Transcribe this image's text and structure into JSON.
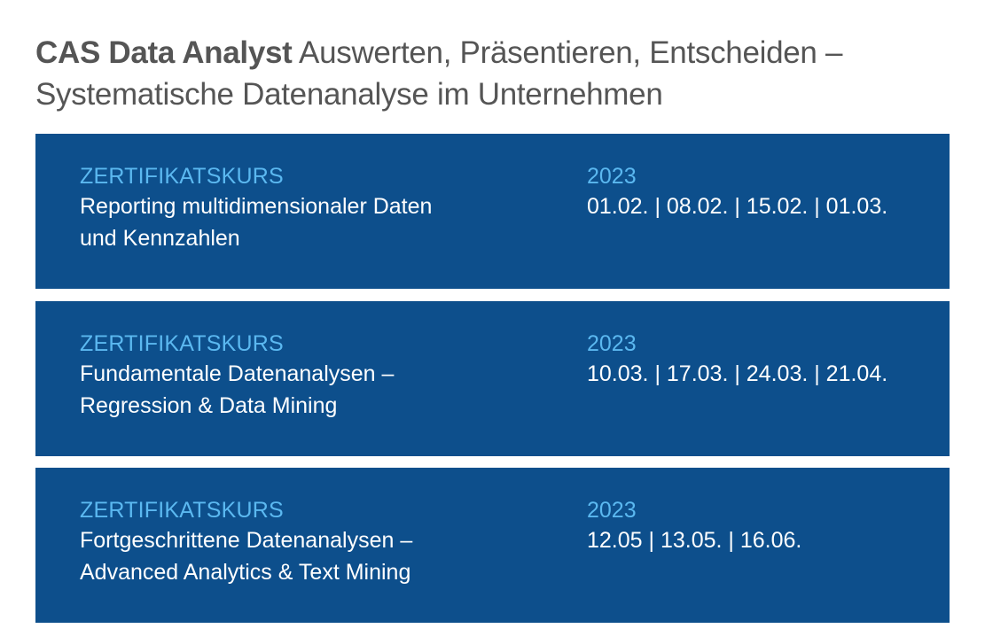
{
  "header": {
    "title_bold": "CAS Data Analyst",
    "title_rest": " Auswerten, Präsentieren, Entscheiden –",
    "subtitle": "Systematische Datenanalyse im Unternehmen"
  },
  "courses": [
    {
      "kicker": "ZERTIFIKATSKURS",
      "title_line1": "Reporting multidimensionaler Daten",
      "title_line2": "und Kennzahlen",
      "year": "2023",
      "dates": "01.02. | 08.02. | 15.02. | 01.03."
    },
    {
      "kicker": "ZERTIFIKATSKURS",
      "title_line1": "Fundamentale Datenanalysen –",
      "title_line2": "Regression & Data Mining",
      "year": "2023",
      "dates": "10.03. | 17.03. | 24.03. | 21.04."
    },
    {
      "kicker": "ZERTIFIKATSKURS",
      "title_line1": "Fortgeschrittene Datenanalysen –",
      "title_line2": "Advanced Analytics & Text Mining",
      "year": "2023",
      "dates": "12.05 | 13.05. | 16.06."
    }
  ],
  "colors": {
    "box_background": "#0d4f8c",
    "accent": "#5bb8f0",
    "header_text": "#555555"
  }
}
